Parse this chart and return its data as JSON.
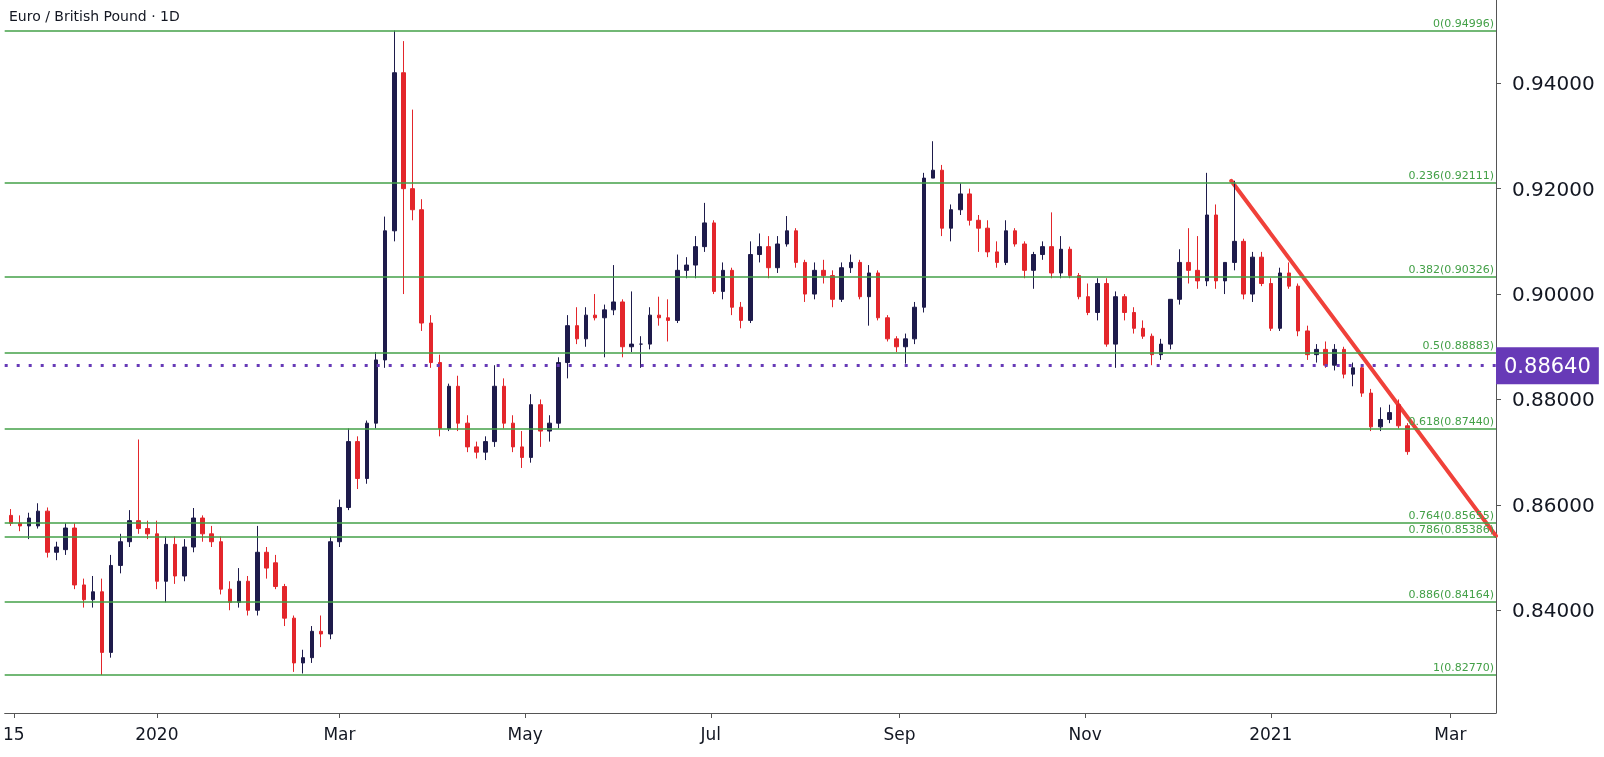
{
  "chart_data": {
    "type": "candlestick",
    "title": "Euro / British Pound · 1D",
    "x": [
      "2019-11-14",
      "2019-11-17",
      "2019-11-20",
      "2019-11-23",
      "2019-11-26",
      "2019-11-29",
      "2019-12-02",
      "2019-12-05",
      "2019-12-08",
      "2019-12-11",
      "2019-12-14",
      "2019-12-17",
      "2019-12-20",
      "2019-12-23",
      "2019-12-26",
      "2019-12-29",
      "2020-01-01",
      "2020-01-04",
      "2020-01-07",
      "2020-01-10",
      "2020-01-13",
      "2020-01-16",
      "2020-01-19",
      "2020-01-22",
      "2020-01-25",
      "2020-01-28",
      "2020-01-31",
      "2020-02-03",
      "2020-02-06",
      "2020-02-09",
      "2020-02-12",
      "2020-02-15",
      "2020-02-18",
      "2020-02-21",
      "2020-02-24",
      "2020-02-27",
      "2020-03-01",
      "2020-03-04",
      "2020-03-07",
      "2020-03-10",
      "2020-03-13",
      "2020-03-16",
      "2020-03-19",
      "2020-03-22",
      "2020-03-25",
      "2020-03-28",
      "2020-03-31",
      "2020-04-03",
      "2020-04-06",
      "2020-04-09",
      "2020-04-12",
      "2020-04-15",
      "2020-04-18",
      "2020-04-21",
      "2020-04-24",
      "2020-04-27",
      "2020-04-30",
      "2020-05-03",
      "2020-05-06",
      "2020-05-09",
      "2020-05-12",
      "2020-05-15",
      "2020-05-18",
      "2020-05-21",
      "2020-05-24",
      "2020-05-27",
      "2020-05-30",
      "2020-06-02",
      "2020-06-05",
      "2020-06-08",
      "2020-06-11",
      "2020-06-14",
      "2020-06-17",
      "2020-06-20",
      "2020-06-23",
      "2020-06-26",
      "2020-06-29",
      "2020-07-02",
      "2020-07-05",
      "2020-07-08",
      "2020-07-11",
      "2020-07-14",
      "2020-07-17",
      "2020-07-20",
      "2020-07-23",
      "2020-07-26",
      "2020-07-29",
      "2020-08-01",
      "2020-08-04",
      "2020-08-07",
      "2020-08-10",
      "2020-08-13",
      "2020-08-16",
      "2020-08-19",
      "2020-08-22",
      "2020-08-25",
      "2020-08-28",
      "2020-08-31",
      "2020-09-03",
      "2020-09-06",
      "2020-09-09",
      "2020-09-12",
      "2020-09-15",
      "2020-09-18",
      "2020-09-21",
      "2020-09-24",
      "2020-09-27",
      "2020-09-30",
      "2020-10-03",
      "2020-10-06",
      "2020-10-09",
      "2020-10-12",
      "2020-10-15",
      "2020-10-18",
      "2020-10-21",
      "2020-10-24",
      "2020-10-27",
      "2020-10-30",
      "2020-11-02",
      "2020-11-05",
      "2020-11-08",
      "2020-11-11",
      "2020-11-14",
      "2020-11-17",
      "2020-11-20",
      "2020-11-23",
      "2020-11-26",
      "2020-11-29",
      "2020-12-02",
      "2020-12-05",
      "2020-12-08",
      "2020-12-11",
      "2020-12-14",
      "2020-12-17",
      "2020-12-20",
      "2020-12-23",
      "2020-12-26",
      "2020-12-29",
      "2021-01-01",
      "2021-01-04",
      "2021-01-07",
      "2021-01-10",
      "2021-01-13",
      "2021-01-16",
      "2021-01-19",
      "2021-01-22",
      "2021-01-25",
      "2021-01-28",
      "2021-01-31",
      "2021-02-03",
      "2021-02-06",
      "2021-02-09",
      "2021-02-12",
      "2021-02-15"
    ],
    "ohlc": [
      [
        0.858,
        0.8592,
        0.856,
        0.8565
      ],
      [
        0.8565,
        0.858,
        0.855,
        0.856
      ],
      [
        0.856,
        0.8585,
        0.8535,
        0.8575
      ],
      [
        0.856,
        0.8603,
        0.8555,
        0.8588
      ],
      [
        0.8588,
        0.8595,
        0.85,
        0.851
      ],
      [
        0.851,
        0.853,
        0.8495,
        0.852
      ],
      [
        0.8515,
        0.8565,
        0.8505,
        0.8556
      ],
      [
        0.8556,
        0.8565,
        0.844,
        0.8448
      ],
      [
        0.8448,
        0.846,
        0.8405,
        0.842
      ],
      [
        0.842,
        0.8465,
        0.8405,
        0.8435
      ],
      [
        0.8435,
        0.846,
        0.8277,
        0.832
      ],
      [
        0.832,
        0.8505,
        0.831,
        0.8485
      ],
      [
        0.8485,
        0.8545,
        0.847,
        0.853
      ],
      [
        0.853,
        0.859,
        0.852,
        0.857
      ],
      [
        0.857,
        0.8724,
        0.8545,
        0.8555
      ],
      [
        0.8555,
        0.857,
        0.8535,
        0.8545
      ],
      [
        0.8545,
        0.857,
        0.844,
        0.8455
      ],
      [
        0.8455,
        0.854,
        0.8415,
        0.8525
      ],
      [
        0.8525,
        0.854,
        0.845,
        0.8465
      ],
      [
        0.8465,
        0.8535,
        0.8455,
        0.852
      ],
      [
        0.852,
        0.8594,
        0.851,
        0.8575
      ],
      [
        0.8575,
        0.858,
        0.853,
        0.8545
      ],
      [
        0.8545,
        0.856,
        0.852,
        0.853
      ],
      [
        0.853,
        0.854,
        0.843,
        0.844
      ],
      [
        0.844,
        0.8455,
        0.84,
        0.8415
      ],
      [
        0.8415,
        0.848,
        0.8405,
        0.8455
      ],
      [
        0.8455,
        0.8465,
        0.839,
        0.84
      ],
      [
        0.84,
        0.856,
        0.839,
        0.851
      ],
      [
        0.851,
        0.852,
        0.846,
        0.848
      ],
      [
        0.849,
        0.8505,
        0.844,
        0.8445
      ],
      [
        0.8445,
        0.845,
        0.837,
        0.8385
      ],
      [
        0.8385,
        0.839,
        0.8283,
        0.83
      ],
      [
        0.83,
        0.8325,
        0.828,
        0.831
      ],
      [
        0.831,
        0.837,
        0.83,
        0.836
      ],
      [
        0.836,
        0.839,
        0.833,
        0.8355
      ],
      [
        0.8355,
        0.854,
        0.8345,
        0.853
      ],
      [
        0.853,
        0.861,
        0.852,
        0.8595
      ],
      [
        0.8595,
        0.8745,
        0.859,
        0.872
      ],
      [
        0.872,
        0.873,
        0.863,
        0.865
      ],
      [
        0.865,
        0.876,
        0.864,
        0.8755
      ],
      [
        0.8755,
        0.889,
        0.8745,
        0.8875
      ],
      [
        0.8875,
        0.9147,
        0.886,
        0.912
      ],
      [
        0.912,
        0.95,
        0.91,
        0.942
      ],
      [
        0.942,
        0.948,
        0.9,
        0.92
      ],
      [
        0.92,
        0.935,
        0.914,
        0.916
      ],
      [
        0.916,
        0.918,
        0.893,
        0.8945
      ],
      [
        0.8945,
        0.896,
        0.886,
        0.887
      ],
      [
        0.887,
        0.8885,
        0.873,
        0.8745
      ],
      [
        0.8745,
        0.883,
        0.874,
        0.8825
      ],
      [
        0.8825,
        0.8845,
        0.874,
        0.8755
      ],
      [
        0.8755,
        0.877,
        0.87,
        0.871
      ],
      [
        0.871,
        0.872,
        0.8688,
        0.87
      ],
      [
        0.87,
        0.873,
        0.8685,
        0.872
      ],
      [
        0.872,
        0.8865,
        0.871,
        0.8825
      ],
      [
        0.8825,
        0.884,
        0.8745,
        0.8755
      ],
      [
        0.8755,
        0.877,
        0.87,
        0.871
      ],
      [
        0.871,
        0.874,
        0.867,
        0.869
      ],
      [
        0.869,
        0.881,
        0.868,
        0.879
      ],
      [
        0.879,
        0.88,
        0.871,
        0.874
      ],
      [
        0.874,
        0.877,
        0.872,
        0.8755
      ],
      [
        0.8755,
        0.888,
        0.8745,
        0.887
      ],
      [
        0.887,
        0.896,
        0.884,
        0.894
      ],
      [
        0.894,
        0.8975,
        0.8905,
        0.8915
      ],
      [
        0.8915,
        0.8975,
        0.89,
        0.896
      ],
      [
        0.896,
        0.9,
        0.895,
        0.8955
      ],
      [
        0.8955,
        0.898,
        0.888,
        0.897
      ],
      [
        0.897,
        0.9055,
        0.896,
        0.8985
      ],
      [
        0.8985,
        0.899,
        0.888,
        0.89
      ],
      [
        0.89,
        0.9005,
        0.889,
        0.8905
      ],
      [
        0.8905,
        0.892,
        0.886,
        0.8905
      ],
      [
        0.8905,
        0.8975,
        0.8895,
        0.896
      ],
      [
        0.896,
        0.8995,
        0.894,
        0.8955
      ],
      [
        0.8955,
        0.899,
        0.891,
        0.895
      ],
      [
        0.895,
        0.9075,
        0.8945,
        0.9045
      ],
      [
        0.9045,
        0.907,
        0.903,
        0.9055
      ],
      [
        0.9055,
        0.911,
        0.903,
        0.909
      ],
      [
        0.909,
        0.9173,
        0.908,
        0.9135
      ],
      [
        0.9135,
        0.914,
        0.9,
        0.9005
      ],
      [
        0.9005,
        0.906,
        0.899,
        0.9045
      ],
      [
        0.9045,
        0.905,
        0.896,
        0.8975
      ],
      [
        0.8975,
        0.8985,
        0.8935,
        0.895
      ],
      [
        0.895,
        0.91,
        0.8945,
        0.9075
      ],
      [
        0.9075,
        0.9115,
        0.906,
        0.909
      ],
      [
        0.909,
        0.911,
        0.903,
        0.905
      ],
      [
        0.905,
        0.911,
        0.904,
        0.9095
      ],
      [
        0.9095,
        0.9148,
        0.909,
        0.912
      ],
      [
        0.912,
        0.9125,
        0.905,
        0.906
      ],
      [
        0.906,
        0.9065,
        0.8985,
        0.9
      ],
      [
        0.9,
        0.906,
        0.899,
        0.9045
      ],
      [
        0.9045,
        0.9065,
        0.902,
        0.9035
      ],
      [
        0.9035,
        0.9045,
        0.8975,
        0.899
      ],
      [
        0.899,
        0.906,
        0.8985,
        0.905
      ],
      [
        0.905,
        0.9075,
        0.904,
        0.906
      ],
      [
        0.906,
        0.9065,
        0.899,
        0.8995
      ],
      [
        0.8995,
        0.9055,
        0.894,
        0.904
      ],
      [
        0.904,
        0.9045,
        0.895,
        0.8955
      ],
      [
        0.8955,
        0.896,
        0.891,
        0.8915
      ],
      [
        0.8915,
        0.892,
        0.889,
        0.89
      ],
      [
        0.89,
        0.8925,
        0.8868,
        0.8915
      ],
      [
        0.8915,
        0.8985,
        0.8905,
        0.8975
      ],
      [
        0.8975,
        0.923,
        0.8965,
        0.922
      ],
      [
        0.922,
        0.929,
        0.922,
        0.9235
      ],
      [
        0.9235,
        0.9245,
        0.911,
        0.9125
      ],
      [
        0.9125,
        0.917,
        0.91,
        0.916
      ],
      [
        0.916,
        0.921,
        0.915,
        0.919
      ],
      [
        0.919,
        0.92,
        0.913,
        0.914
      ],
      [
        0.914,
        0.915,
        0.908,
        0.9125
      ],
      [
        0.9125,
        0.914,
        0.907,
        0.908
      ],
      [
        0.908,
        0.91,
        0.905,
        0.906
      ],
      [
        0.906,
        0.914,
        0.9055,
        0.912
      ],
      [
        0.912,
        0.9125,
        0.909,
        0.9095
      ],
      [
        0.9095,
        0.91,
        0.903,
        0.9045
      ],
      [
        0.9045,
        0.908,
        0.901,
        0.9075
      ],
      [
        0.9075,
        0.91,
        0.9065,
        0.909
      ],
      [
        0.909,
        0.9155,
        0.903,
        0.904
      ],
      [
        0.904,
        0.911,
        0.903,
        0.9085
      ],
      [
        0.9085,
        0.909,
        0.903,
        0.9035
      ],
      [
        0.9035,
        0.904,
        0.899,
        0.8995
      ],
      [
        0.8995,
        0.902,
        0.896,
        0.8965
      ],
      [
        0.8965,
        0.903,
        0.895,
        0.902
      ],
      [
        0.902,
        0.903,
        0.89,
        0.8905
      ],
      [
        0.8905,
        0.9005,
        0.886,
        0.8995
      ],
      [
        0.8995,
        0.9,
        0.895,
        0.8965
      ],
      [
        0.8965,
        0.8975,
        0.8925,
        0.8935
      ],
      [
        0.8935,
        0.895,
        0.8915,
        0.892
      ],
      [
        0.892,
        0.8925,
        0.8865,
        0.8885
      ],
      [
        0.8885,
        0.8915,
        0.8875,
        0.8905
      ],
      [
        0.8905,
        0.899,
        0.8895,
        0.899
      ],
      [
        0.899,
        0.9085,
        0.898,
        0.906
      ],
      [
        0.906,
        0.9125,
        0.902,
        0.9045
      ],
      [
        0.9045,
        0.911,
        0.901,
        0.9025
      ],
      [
        0.9025,
        0.923,
        0.9015,
        0.915
      ],
      [
        0.915,
        0.917,
        0.901,
        0.9025
      ],
      [
        0.9025,
        0.906,
        0.9,
        0.906
      ],
      [
        0.906,
        0.9215,
        0.9045,
        0.91
      ],
      [
        0.91,
        0.9105,
        0.899,
        0.9
      ],
      [
        0.9,
        0.908,
        0.8985,
        0.907
      ],
      [
        0.907,
        0.908,
        0.9015,
        0.902
      ],
      [
        0.902,
        0.903,
        0.893,
        0.8935
      ],
      [
        0.8935,
        0.905,
        0.893,
        0.904
      ],
      [
        0.904,
        0.906,
        0.901,
        0.9015
      ],
      [
        0.9015,
        0.902,
        0.892,
        0.893
      ],
      [
        0.893,
        0.894,
        0.8875,
        0.8885
      ],
      [
        0.8885,
        0.8905,
        0.887,
        0.8895
      ],
      [
        0.8895,
        0.891,
        0.886,
        0.8865
      ],
      [
        0.8865,
        0.8905,
        0.8855,
        0.8895
      ],
      [
        0.8895,
        0.89,
        0.884,
        0.8848
      ],
      [
        0.8848,
        0.887,
        0.8825,
        0.886
      ],
      [
        0.886,
        0.8865,
        0.8805,
        0.8812
      ],
      [
        0.8812,
        0.882,
        0.874,
        0.8748
      ],
      [
        0.8748,
        0.8785,
        0.874,
        0.8762
      ],
      [
        0.8762,
        0.879,
        0.8755,
        0.8775
      ],
      [
        0.879,
        0.88,
        0.8745,
        0.875
      ],
      [
        0.875,
        0.8755,
        0.8695,
        0.8701
      ]
    ],
    "colors": [
      "#e3262b",
      "#e3262b",
      "#1e1b4b",
      "#1e1b4b",
      "#e3262b",
      "#1e1b4b",
      "#1e1b4b",
      "#e3262b",
      "#e3262b",
      "#1e1b4b",
      "#e3262b",
      "#1e1b4b",
      "#1e1b4b",
      "#1e1b4b",
      "#e3262b",
      "#e3262b",
      "#e3262b",
      "#1e1b4b",
      "#e3262b",
      "#1e1b4b",
      "#1e1b4b",
      "#e3262b",
      "#e3262b",
      "#e3262b",
      "#e3262b",
      "#1e1b4b",
      "#e3262b",
      "#1e1b4b",
      "#e3262b",
      "#e3262b",
      "#e3262b",
      "#e3262b",
      "#1e1b4b",
      "#1e1b4b",
      "#e3262b",
      "#1e1b4b",
      "#1e1b4b",
      "#1e1b4b",
      "#e3262b",
      "#1e1b4b",
      "#1e1b4b",
      "#1e1b4b",
      "#1e1b4b",
      "#e3262b",
      "#e3262b",
      "#e3262b",
      "#e3262b",
      "#e3262b",
      "#1e1b4b",
      "#e3262b",
      "#e3262b",
      "#e3262b",
      "#1e1b4b",
      "#1e1b4b",
      "#e3262b",
      "#e3262b",
      "#e3262b",
      "#1e1b4b",
      "#e3262b",
      "#1e1b4b",
      "#1e1b4b",
      "#1e1b4b",
      "#e3262b",
      "#1e1b4b",
      "#e3262b",
      "#1e1b4b",
      "#1e1b4b",
      "#e3262b",
      "#1e1b4b",
      "#1e1b4b",
      "#1e1b4b",
      "#e3262b",
      "#e3262b",
      "#1e1b4b",
      "#1e1b4b",
      "#1e1b4b",
      "#1e1b4b",
      "#e3262b",
      "#1e1b4b",
      "#e3262b",
      "#e3262b",
      "#1e1b4b",
      "#1e1b4b",
      "#e3262b",
      "#1e1b4b",
      "#1e1b4b",
      "#e3262b",
      "#e3262b",
      "#1e1b4b",
      "#e3262b",
      "#e3262b",
      "#1e1b4b",
      "#1e1b4b",
      "#e3262b",
      "#1e1b4b",
      "#e3262b",
      "#e3262b",
      "#e3262b",
      "#1e1b4b",
      "#1e1b4b",
      "#1e1b4b",
      "#1e1b4b",
      "#e3262b",
      "#1e1b4b",
      "#1e1b4b",
      "#e3262b",
      "#e3262b",
      "#e3262b",
      "#e3262b",
      "#1e1b4b",
      "#e3262b",
      "#e3262b",
      "#1e1b4b",
      "#1e1b4b",
      "#e3262b",
      "#1e1b4b",
      "#e3262b",
      "#e3262b",
      "#e3262b",
      "#1e1b4b",
      "#e3262b",
      "#1e1b4b",
      "#e3262b",
      "#e3262b",
      "#e3262b",
      "#e3262b",
      "#1e1b4b",
      "#1e1b4b",
      "#1e1b4b",
      "#e3262b",
      "#e3262b",
      "#1e1b4b",
      "#e3262b",
      "#1e1b4b",
      "#1e1b4b",
      "#e3262b",
      "#1e1b4b",
      "#e3262b",
      "#e3262b",
      "#1e1b4b",
      "#e3262b",
      "#e3262b",
      "#e3262b",
      "#1e1b4b",
      "#e3262b",
      "#1e1b4b",
      "#e3262b",
      "#1e1b4b",
      "#e3262b",
      "#e3262b",
      "#1e1b4b",
      "#1e1b4b",
      "#e3262b",
      "#e3262b"
    ],
    "series": [
      {
        "type": "line",
        "color": "#f0413a",
        "x": [
          "2020-12-19",
          "2021-03-16"
        ],
        "values": [
          0.9215,
          0.8541
        ]
      }
    ],
    "xlim": [
      "2019-11-12",
      "2021-03-16"
    ],
    "xticks": [
      {
        "value": "2019-11-15",
        "label": "15"
      },
      {
        "value": "2020-01-01",
        "label": "2020"
      },
      {
        "value": "2020-03-01",
        "label": "Mar"
      },
      {
        "value": "2020-05-01",
        "label": "May"
      },
      {
        "value": "2020-07-01",
        "label": "Jul"
      },
      {
        "value": "2020-09-01",
        "label": "Sep"
      },
      {
        "value": "2020-11-01",
        "label": "Nov"
      },
      {
        "value": "2021-01-01",
        "label": "2021"
      },
      {
        "value": "2021-03-01",
        "label": "Mar"
      }
    ],
    "ylim": [
      0.8205,
      0.9558
    ],
    "yticks": [
      {
        "value": 0.84,
        "label": "0.84000"
      },
      {
        "value": 0.86,
        "label": "0.86000"
      },
      {
        "value": 0.88,
        "label": "0.88000"
      },
      {
        "value": 0.9,
        "label": "0.90000"
      },
      {
        "value": 0.92,
        "label": "0.92000"
      },
      {
        "value": 0.94,
        "label": "0.94000"
      }
    ],
    "ref_lines": [
      {
        "axis": "y",
        "value": 0.94996,
        "label": "0(0.94996)",
        "color": "#43a047"
      },
      {
        "axis": "y",
        "value": 0.92111,
        "label": "0.236(0.92111)",
        "color": "#43a047"
      },
      {
        "axis": "y",
        "value": 0.90326,
        "label": "0.382(0.90326)",
        "color": "#43a047"
      },
      {
        "axis": "y",
        "value": 0.88883,
        "label": "0.5(0.88883)",
        "color": "#43a047"
      },
      {
        "axis": "y",
        "value": 0.8744,
        "label": "0.618(0.87440)",
        "color": "#43a047"
      },
      {
        "axis": "y",
        "value": 0.85655,
        "label": "0.764(0.85655)",
        "color": "#43a047"
      },
      {
        "axis": "y",
        "value": 0.85386,
        "label": "0.786(0.85386)",
        "color": "#43a047"
      },
      {
        "axis": "y",
        "value": 0.84164,
        "label": "0.886(0.84164)",
        "color": "#43a047"
      },
      {
        "axis": "y",
        "value": 0.8277,
        "label": "1(0.82770)",
        "color": "#43a047"
      },
      {
        "axis": "y",
        "value": 0.8864,
        "label": "0.88640",
        "color": "#673ab7",
        "line_style": "dotted"
      }
    ],
    "grid": false
  }
}
